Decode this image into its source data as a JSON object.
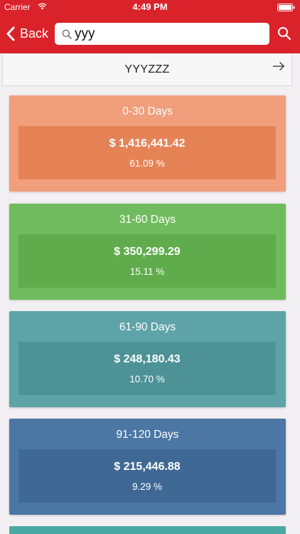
{
  "status_bar": {
    "carrier": "Carrier",
    "time": "4:49 PM"
  },
  "nav": {
    "back_label": "Back",
    "search_value": "yyy"
  },
  "customer": {
    "name": "YYYZZZ"
  },
  "buckets": [
    {
      "label": "0-30 Days",
      "amount": "$ 1,416,441.42",
      "percent": "61.09 %",
      "color": "#f09e7b",
      "inner_color": "#e58357"
    },
    {
      "label": "31-60 Days",
      "amount": "$ 350,299.29",
      "percent": "15.11 %",
      "color": "#70bb5e",
      "inner_color": "#60ac4d"
    },
    {
      "label": "61-90 Days",
      "amount": "$ 248,180.43",
      "percent": "10.70 %",
      "color": "#5ea3a8",
      "inner_color": "#4c9296"
    },
    {
      "label": "91-120 Days",
      "amount": "$ 215,446.88",
      "percent": "9.29 %",
      "color": "#4c77a4",
      "inner_color": "#3f6994"
    }
  ],
  "colors": {
    "nav": "#d9222a",
    "background": "#f1eff1",
    "next_bucket_peek": "#4aaaa3"
  },
  "icons": [
    "wifi-icon",
    "battery-icon",
    "chevron-left-icon",
    "search-icon",
    "arrow-right-icon"
  ]
}
